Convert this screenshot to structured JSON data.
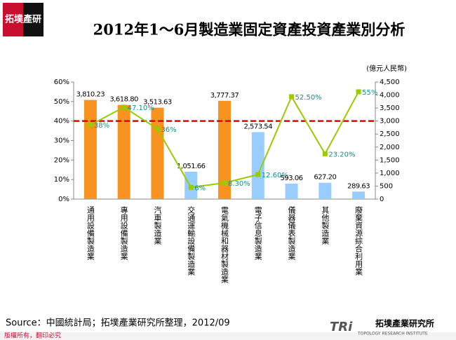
{
  "slide": {
    "logo": "拓墣產研",
    "source": "Source：中國統計局；拓墣產業研究所整理，2012/09",
    "copyright": "版權所有，翻印必究",
    "brand": "拓墣產業研究所",
    "brand_en": "TOPOLOGY RESEARCH INSTITUTE"
  },
  "chart_data": {
    "type": "bar-line",
    "title": "2012年1～6月製造業固定資產投資產業別分析",
    "y2_label": "(億元人民幣)",
    "categories": [
      "通用設備製造業",
      "專用設備製造業",
      "汽車製造業",
      "交通運輸設備製造業",
      "電氣機械和器材製造業",
      "電子信息製造業",
      "儀器儀表製造業",
      "其他製造業",
      "廢棄資源綜合利用業"
    ],
    "series": [
      {
        "type": "bar",
        "axis": "y2",
        "colors": [
          "#f7931e",
          "#f7931e",
          "#f7931e",
          "#99ccff",
          "#f7931e",
          "#99ccff",
          "#99ccff",
          "#99ccff",
          "#99ccff"
        ],
        "values": [
          3810.23,
          3618.8,
          3513.63,
          1051.66,
          3777.37,
          2573.54,
          593.06,
          627.2,
          289.63
        ],
        "value_labels": [
          "3,810.23",
          "3,618.80",
          "3,513.63",
          "1,051.66",
          "3,777.37",
          "2,573.54",
          "593.06",
          "627.20",
          "289.63"
        ]
      },
      {
        "type": "line",
        "color": "#99cc00",
        "label_color": "#1a8c8c",
        "values": [
          38,
          47.1,
          36,
          6,
          8.3,
          12.6,
          52.5,
          23.2,
          55
        ],
        "value_labels": [
          "38%",
          "47.10%",
          "36%",
          "6%",
          "8.30%",
          "12.60%",
          "52.50%",
          "23.20%",
          "55%"
        ]
      }
    ],
    "ylim": [
      0,
      60
    ],
    "yticks": [
      {
        "value": 0,
        "label": "0%"
      },
      {
        "value": 10,
        "label": "10%"
      },
      {
        "value": 20,
        "label": "20%"
      },
      {
        "value": 30,
        "label": "30%"
      },
      {
        "value": 40,
        "label": "40%"
      },
      {
        "value": 50,
        "label": "50%"
      },
      {
        "value": 60,
        "label": "60%"
      }
    ],
    "y2lim": [
      0,
      4500
    ],
    "y2ticks": [
      0,
      500,
      {
        "value": 1000,
        "label": "1,000"
      },
      {
        "value": 1500,
        "label": "1,500"
      },
      {
        "value": 2000,
        "label": "2,000"
      },
      {
        "value": 2500,
        "label": "2,500"
      },
      {
        "value": 3000,
        "label": "3,000"
      },
      {
        "value": 3500,
        "label": "3,500"
      },
      {
        "value": 4000,
        "label": "4,000"
      },
      {
        "value": 4500,
        "label": "4,500"
      }
    ],
    "reference_line": {
      "value": 40,
      "color": "#e60000"
    }
  }
}
